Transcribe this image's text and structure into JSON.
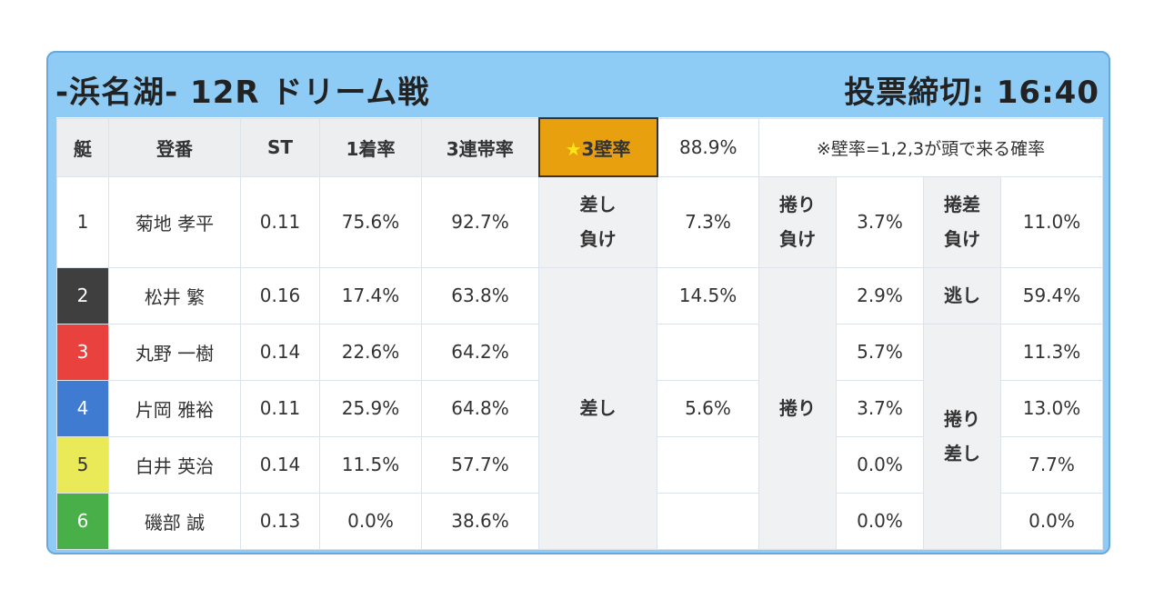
{
  "header": {
    "title": "-浜名湖- 12R ドリーム戦",
    "deadline": "投票締切: 16:40"
  },
  "columns": {
    "boat": "艇",
    "reg": "登番",
    "st": "ST",
    "first_rate": "1着率",
    "trio_rate": "3連帯率",
    "wall_rate_label": "3壁率",
    "wall_rate_star": "★",
    "wall_rate_value": "88.9%",
    "note": "※壁率=1,2,3が頭で来る確率"
  },
  "rows": [
    {
      "lane": "1",
      "name": "菊地 孝平",
      "st": "0.11",
      "first": "75.6%",
      "trio": "92.7%",
      "bg": "#ffffff",
      "fg": "#333333"
    },
    {
      "lane": "2",
      "name": "松井 繁",
      "st": "0.16",
      "first": "17.4%",
      "trio": "63.8%",
      "bg": "#3f3f3f",
      "fg": "#ffffff"
    },
    {
      "lane": "3",
      "name": "丸野 一樹",
      "st": "0.14",
      "first": "22.6%",
      "trio": "64.2%",
      "bg": "#e8413e",
      "fg": "#ffffff"
    },
    {
      "lane": "4",
      "name": "片岡 雅裕",
      "st": "0.11",
      "first": "25.9%",
      "trio": "64.8%",
      "bg": "#3f7bd0",
      "fg": "#ffffff"
    },
    {
      "lane": "5",
      "name": "白井 英治",
      "st": "0.14",
      "first": "11.5%",
      "trio": "57.7%",
      "bg": "#eaea59",
      "fg": "#333333"
    },
    {
      "lane": "6",
      "name": "磯部 誠",
      "st": "0.13",
      "first": "0.0%",
      "trio": "38.6%",
      "bg": "#49b049",
      "fg": "#ffffff"
    }
  ],
  "kimarite": {
    "sashi_make": "差し\n負け",
    "sashi": "差し",
    "makuri_make": "捲り\n負け",
    "makuri": "捲り",
    "makurisashi_make": "捲差\n負け",
    "nige": "逃し",
    "makuri_sashi": "捲り\n差し"
  },
  "col_a": [
    "7.3%",
    "14.5%",
    "",
    "5.6%",
    "",
    ""
  ],
  "col_b": [
    "3.7%",
    "2.9%",
    "5.7%",
    "3.7%",
    "0.0%",
    "0.0%"
  ],
  "col_c": [
    "11.0%",
    "59.4%",
    "11.3%",
    "13.0%",
    "7.7%",
    "0.0%"
  ],
  "colors": {
    "card_bg": "#8ecbf5",
    "highlight": "#e8a00e",
    "header_cell": "#eceef0"
  }
}
